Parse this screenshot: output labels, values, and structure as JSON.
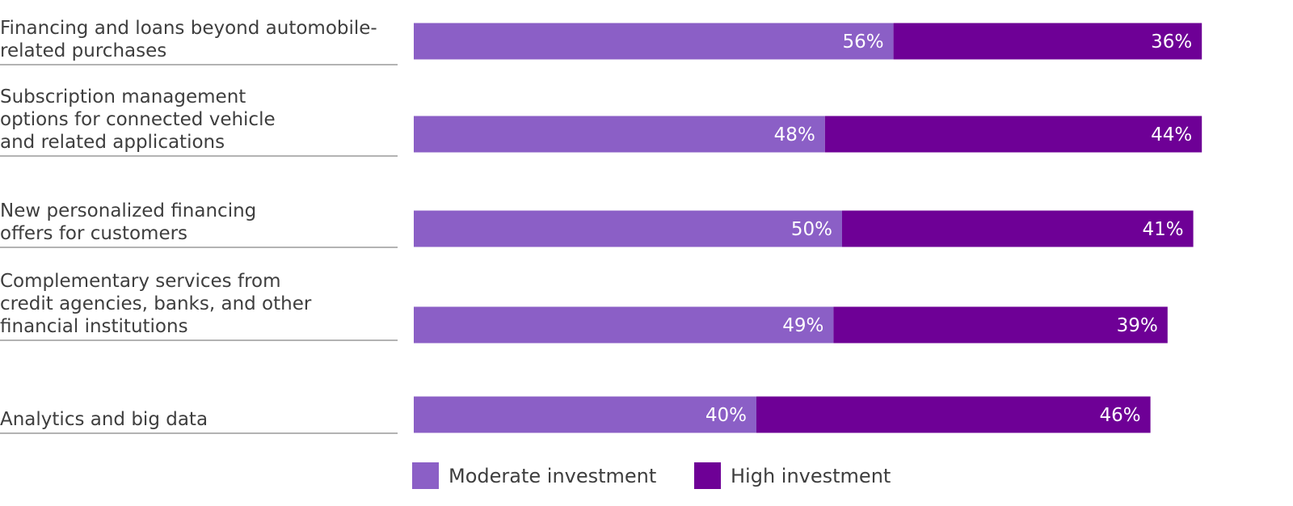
{
  "chart_data": {
    "type": "stacked-bar",
    "categories": [
      [
        "Financing and loans beyond automobile-",
        "related purchases"
      ],
      [
        "Subscription management",
        "options for connected vehicle",
        "and related applications"
      ],
      [
        "New personalized financing",
        "offers for customers"
      ],
      [
        "Complementary services from",
        "credit agencies, banks, and other",
        "financial institutions"
      ],
      [
        "Analytics and big data"
      ]
    ],
    "series": [
      {
        "name": "Moderate investment",
        "color": "#8b5fc6",
        "values": [
          56,
          48,
          50,
          49,
          40
        ],
        "value_labels": [
          "56%",
          "48%",
          "50%",
          "49%",
          "40%"
        ]
      },
      {
        "name": "High investment",
        "color": "#6e0096",
        "values": [
          36,
          44,
          41,
          39,
          46
        ],
        "value_labels": [
          "36%",
          "44%",
          "41%",
          "39%",
          "46%"
        ]
      }
    ]
  }
}
